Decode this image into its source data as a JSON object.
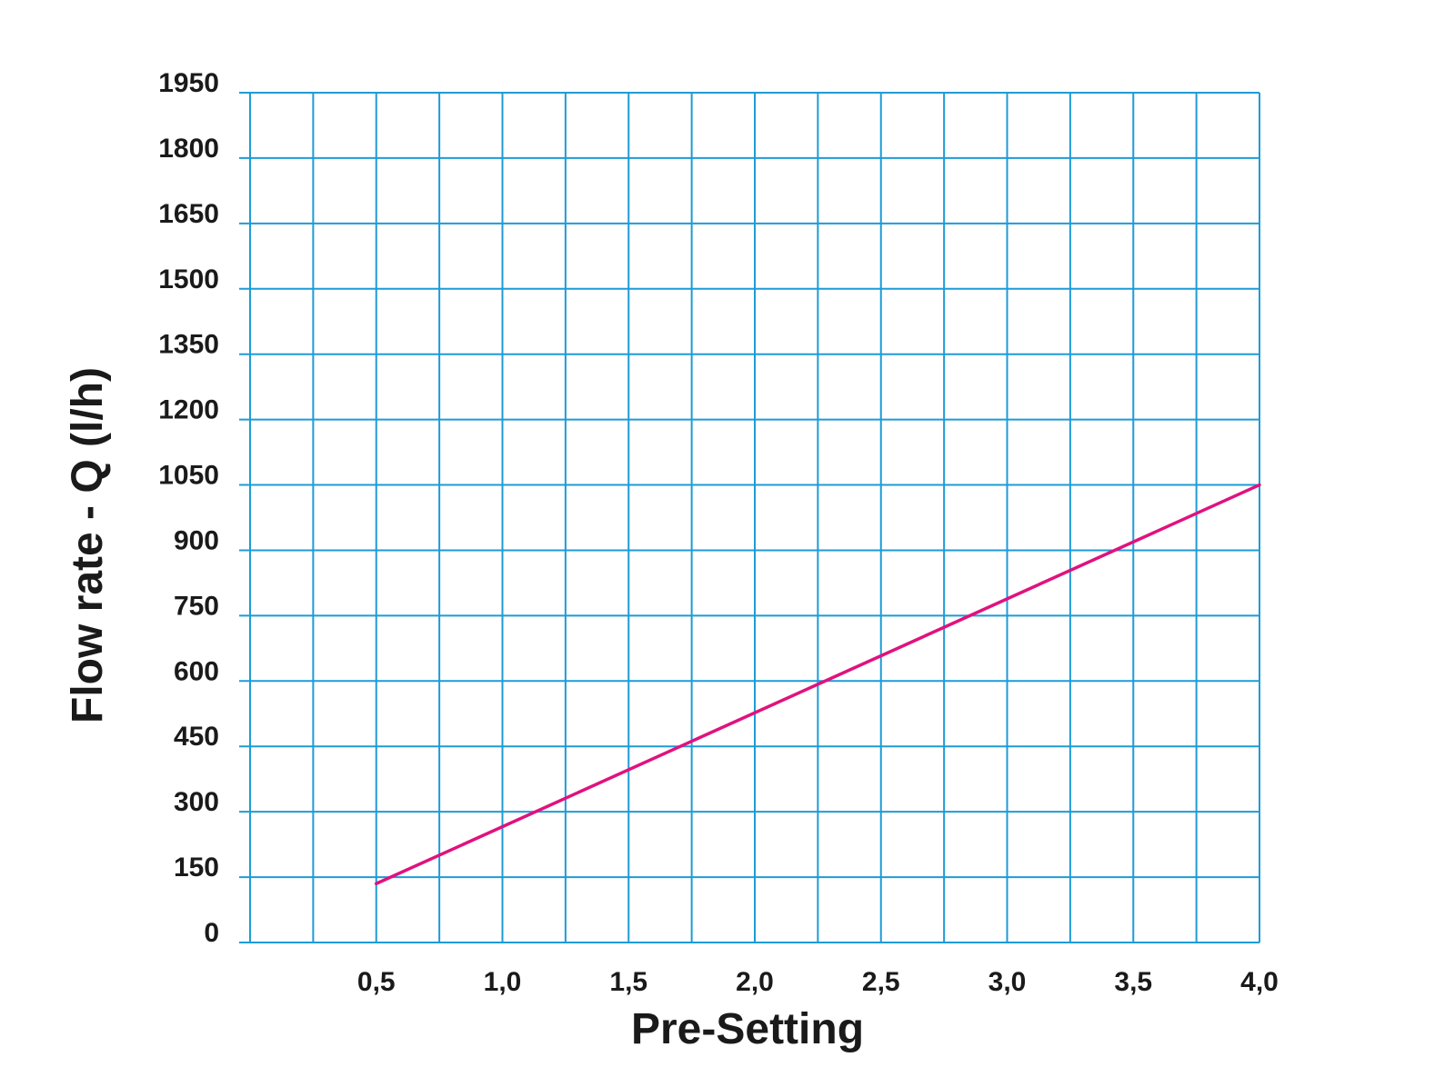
{
  "chart_data": {
    "type": "line",
    "title": "",
    "xlabel": "Pre-Setting",
    "ylabel": "Flow rate - Q (l/h)",
    "xlim": [
      0,
      4.0
    ],
    "ylim": [
      0,
      1950
    ],
    "x_tick_labels": [
      "0,5",
      "1,0",
      "1,5",
      "2,0",
      "2,5",
      "3,0",
      "3,5",
      "4,0"
    ],
    "x_tick_values": [
      0.5,
      1.0,
      1.5,
      2.0,
      2.5,
      3.0,
      3.5,
      4.0
    ],
    "x_grid_step": 0.25,
    "y_ticks": [
      0,
      150,
      300,
      450,
      600,
      750,
      900,
      1050,
      1200,
      1350,
      1500,
      1650,
      1800,
      1950
    ],
    "grid": true,
    "grid_color": "#1e9bd7",
    "series": [
      {
        "color": "#e0127e",
        "x": [
          0.5,
          4.0
        ],
        "y": [
          135,
          1050
        ]
      }
    ]
  }
}
